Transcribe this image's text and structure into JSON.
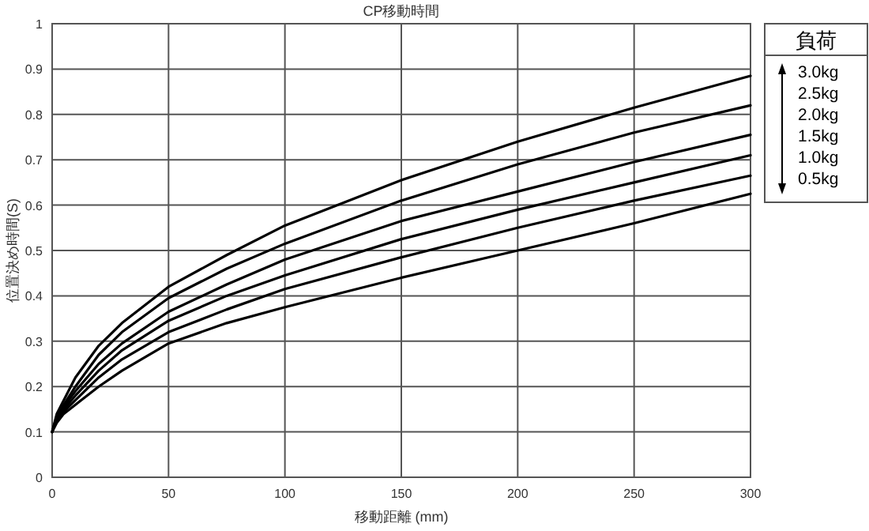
{
  "chart_data": {
    "type": "line",
    "title": "CP移動時間",
    "xlabel": "移動距離 (mm)",
    "ylabel": "位置決め時間(S)",
    "legend_title": "負荷",
    "x": [
      0,
      2,
      5,
      10,
      20,
      30,
      50,
      75,
      100,
      150,
      200,
      250,
      300
    ],
    "series": [
      {
        "name": "3.0kg",
        "color": "#000000",
        "values": [
          0.1,
          0.14,
          0.17,
          0.22,
          0.29,
          0.34,
          0.42,
          0.49,
          0.555,
          0.655,
          0.74,
          0.815,
          0.885
        ]
      },
      {
        "name": "2.5kg",
        "color": "#000000",
        "values": [
          0.1,
          0.135,
          0.16,
          0.2,
          0.27,
          0.32,
          0.395,
          0.46,
          0.515,
          0.61,
          0.69,
          0.76,
          0.82
        ]
      },
      {
        "name": "2.0kg",
        "color": "#000000",
        "values": [
          0.1,
          0.13,
          0.155,
          0.19,
          0.25,
          0.295,
          0.365,
          0.425,
          0.48,
          0.565,
          0.63,
          0.695,
          0.755
        ]
      },
      {
        "name": "1.5kg",
        "color": "#000000",
        "values": [
          0.1,
          0.128,
          0.15,
          0.18,
          0.235,
          0.28,
          0.345,
          0.4,
          0.445,
          0.525,
          0.59,
          0.65,
          0.71
        ]
      },
      {
        "name": "1.0kg",
        "color": "#000000",
        "values": [
          0.1,
          0.125,
          0.145,
          0.17,
          0.22,
          0.26,
          0.32,
          0.37,
          0.415,
          0.485,
          0.55,
          0.61,
          0.665
        ]
      },
      {
        "name": "0.5kg",
        "color": "#000000",
        "values": [
          0.1,
          0.12,
          0.14,
          0.16,
          0.2,
          0.235,
          0.295,
          0.34,
          0.375,
          0.44,
          0.5,
          0.56,
          0.625
        ]
      }
    ],
    "xlim": [
      0,
      300
    ],
    "xticks": [
      0,
      50,
      100,
      150,
      200,
      250,
      300
    ],
    "ylim": [
      0,
      1
    ],
    "yticks": [
      0,
      0.1,
      0.2,
      0.3,
      0.4,
      0.5,
      0.6,
      0.7,
      0.8,
      0.9,
      1
    ],
    "grid": true,
    "legend": "top right",
    "marker": "none",
    "line_style": "solid"
  }
}
